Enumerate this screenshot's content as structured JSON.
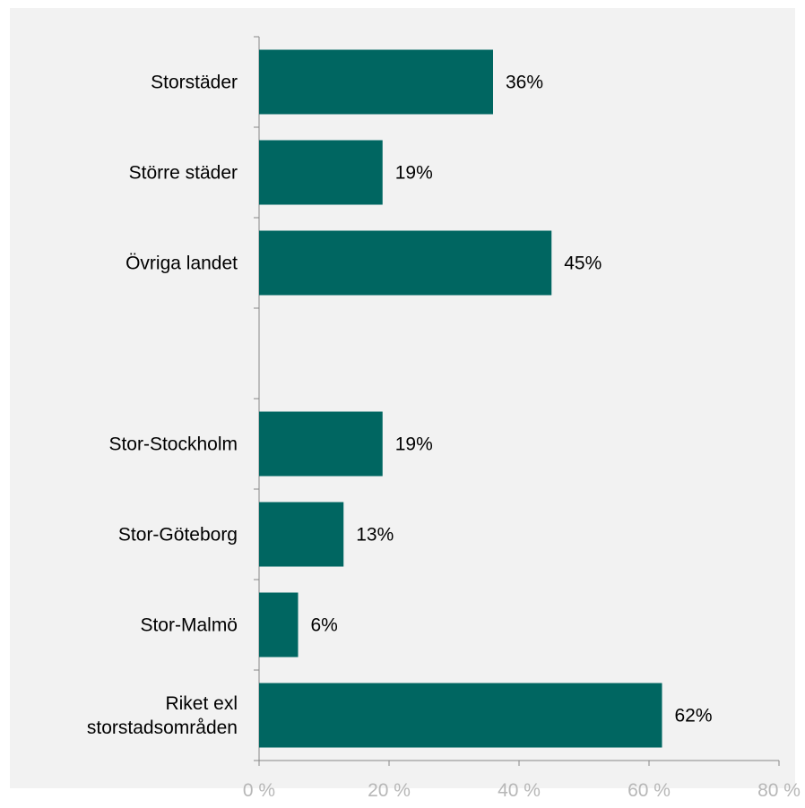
{
  "chart_data": {
    "type": "bar",
    "orientation": "horizontal",
    "categories": [
      "Storstäder",
      "Större städer",
      "Övriga landet",
      "",
      "Stor-Stockholm",
      "Stor-Göteborg",
      "Stor-Malmö",
      "Riket exl storstadsområden"
    ],
    "category_lines": [
      [
        "Storstäder"
      ],
      [
        "Större städer"
      ],
      [
        "Övriga landet"
      ],
      [],
      [
        "Stor-Stockholm"
      ],
      [
        "Stor-Göteborg"
      ],
      [
        "Stor-Malmö"
      ],
      [
        "Riket exl",
        "storstadsområden"
      ]
    ],
    "values": [
      36,
      19,
      45,
      null,
      19,
      13,
      6,
      62
    ],
    "value_labels": [
      "36%",
      "19%",
      "45%",
      "",
      "19%",
      "13%",
      "6%",
      "62%"
    ],
    "xlim": [
      0,
      80
    ],
    "xticks": [
      0,
      20,
      40,
      60,
      80
    ],
    "xtick_labels": [
      "0 %",
      "20 %",
      "40 %",
      "60 %",
      "80 %"
    ],
    "grid": false,
    "legend": "none",
    "bar_color": "#006661",
    "axis_color": "#888888",
    "tick_label_color": "#b7b7b7",
    "background_color": "#f2f2f2"
  }
}
